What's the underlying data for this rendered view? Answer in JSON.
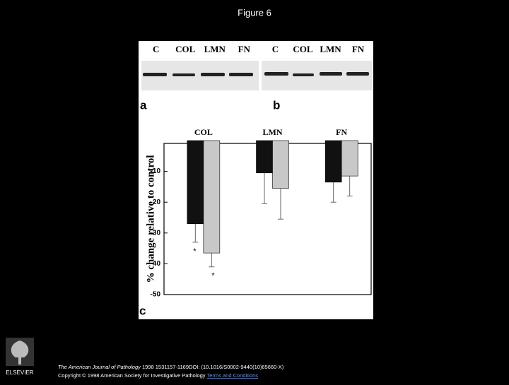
{
  "title": "Figure 6",
  "figure": {
    "blots": [
      {
        "label": "a",
        "lanes": [
          "C",
          "COL",
          "LMN",
          "FN"
        ]
      },
      {
        "label": "b",
        "lanes": [
          "C",
          "COL",
          "LMN",
          "FN"
        ]
      }
    ],
    "panel_label": "c"
  },
  "chart_data": {
    "type": "bar",
    "y_label": "% change relative to control",
    "categories": [
      "COL",
      "LMN",
      "FN"
    ],
    "series": [
      {
        "color": "#111111",
        "values": [
          -27,
          -10.5,
          -13.5
        ],
        "errors": [
          6,
          10,
          6.5
        ]
      },
      {
        "color": "#c8c8c8",
        "values": [
          -36.5,
          -15.5,
          -11.5
        ],
        "errors": [
          4.5,
          10,
          6.5
        ]
      }
    ],
    "ylim": [
      -50,
      0
    ],
    "yticks": [
      -50,
      -40,
      -30,
      -20,
      -10
    ],
    "annotations": [
      "*",
      "*"
    ]
  },
  "footer": {
    "publisher": "ELSEVIER",
    "journal": "The American Journal of Pathology",
    "citation": "1998 1531157-1169DOI: (10.1016/S0002-9440(10)65660-X)",
    "copyright": "Copyright © 1998 American Society for Investigative Pathology",
    "link": "Terms and Conditions"
  }
}
